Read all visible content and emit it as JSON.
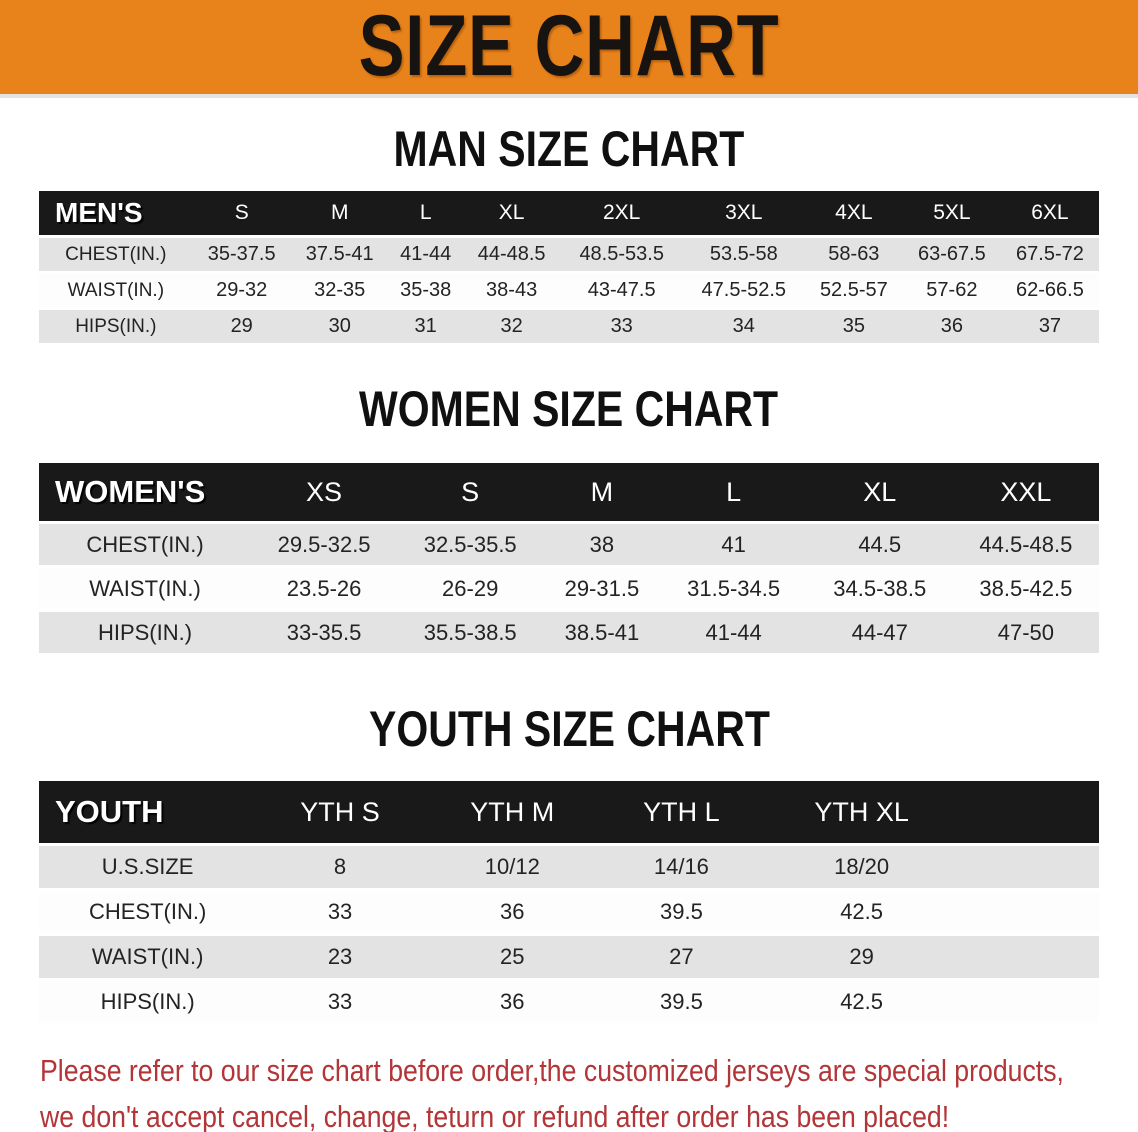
{
  "banner": {
    "title": "SIZE CHART"
  },
  "sections": [
    {
      "heading": "MAN SIZE CHART",
      "table_name": "men-size-table",
      "header_label": "MEN'S",
      "columns": [
        "S",
        "M",
        "L",
        "XL",
        "2XL",
        "3XL",
        "4XL",
        "5XL",
        "6XL"
      ],
      "rows": [
        {
          "label": "CHEST(IN.)",
          "values": [
            "35-37.5",
            "37.5-41",
            "41-44",
            "44-48.5",
            "48.5-53.5",
            "53.5-58",
            "58-63",
            "63-67.5",
            "67.5-72"
          ]
        },
        {
          "label": "WAIST(IN.)",
          "values": [
            "29-32",
            "32-35",
            "35-38",
            "38-43",
            "43-47.5",
            "47.5-52.5",
            "52.5-57",
            "57-62",
            "62-66.5"
          ]
        },
        {
          "label": "HIPS(IN.)",
          "values": [
            "29",
            "30",
            "31",
            "32",
            "33",
            "34",
            "35",
            "36",
            "37"
          ]
        }
      ]
    },
    {
      "heading": "WOMEN SIZE CHART",
      "table_name": "women-size-table",
      "header_label": "WOMEN'S",
      "columns": [
        "XS",
        "S",
        "M",
        "L",
        "XL",
        "XXL"
      ],
      "rows": [
        {
          "label": "CHEST(IN.)",
          "values": [
            "29.5-32.5",
            "32.5-35.5",
            "38",
            "41",
            "44.5",
            "44.5-48.5"
          ]
        },
        {
          "label": "WAIST(IN.)",
          "values": [
            "23.5-26",
            "26-29",
            "29-31.5",
            "31.5-34.5",
            "34.5-38.5",
            "38.5-42.5"
          ]
        },
        {
          "label": "HIPS(IN.)",
          "values": [
            "33-35.5",
            "35.5-38.5",
            "38.5-41",
            "41-44",
            "44-47",
            "47-50"
          ]
        }
      ]
    },
    {
      "heading": "YOUTH SIZE CHART",
      "table_name": "youth-size-table",
      "header_label": "YOUTH",
      "columns": [
        "YTH S",
        "YTH M",
        "YTH L",
        "YTH XL"
      ],
      "rows": [
        {
          "label": "U.S.SIZE",
          "values": [
            "8",
            "10/12",
            "14/16",
            "18/20"
          ]
        },
        {
          "label": "CHEST(IN.)",
          "values": [
            "33",
            "36",
            "39.5",
            "42.5"
          ]
        },
        {
          "label": "WAIST(IN.)",
          "values": [
            "23",
            "25",
            "27",
            "29"
          ]
        },
        {
          "label": "HIPS(IN.)",
          "values": [
            "33",
            "36",
            "39.5",
            "42.5"
          ]
        }
      ]
    }
  ],
  "footer": {
    "line1": "Please refer to our size chart before order,the customized jerseys are special products,",
    "line2": "we don't accept cancel, change, teturn or refund after order has been placed!"
  },
  "colors": {
    "banner_bg": "#E8821B",
    "header_bg": "#191919",
    "header_text": "#FFFFFF",
    "stripe": "#E3E3E3",
    "row_white": "#FDFDFD",
    "body_text": "#232323",
    "notice_red": "#B23538"
  }
}
